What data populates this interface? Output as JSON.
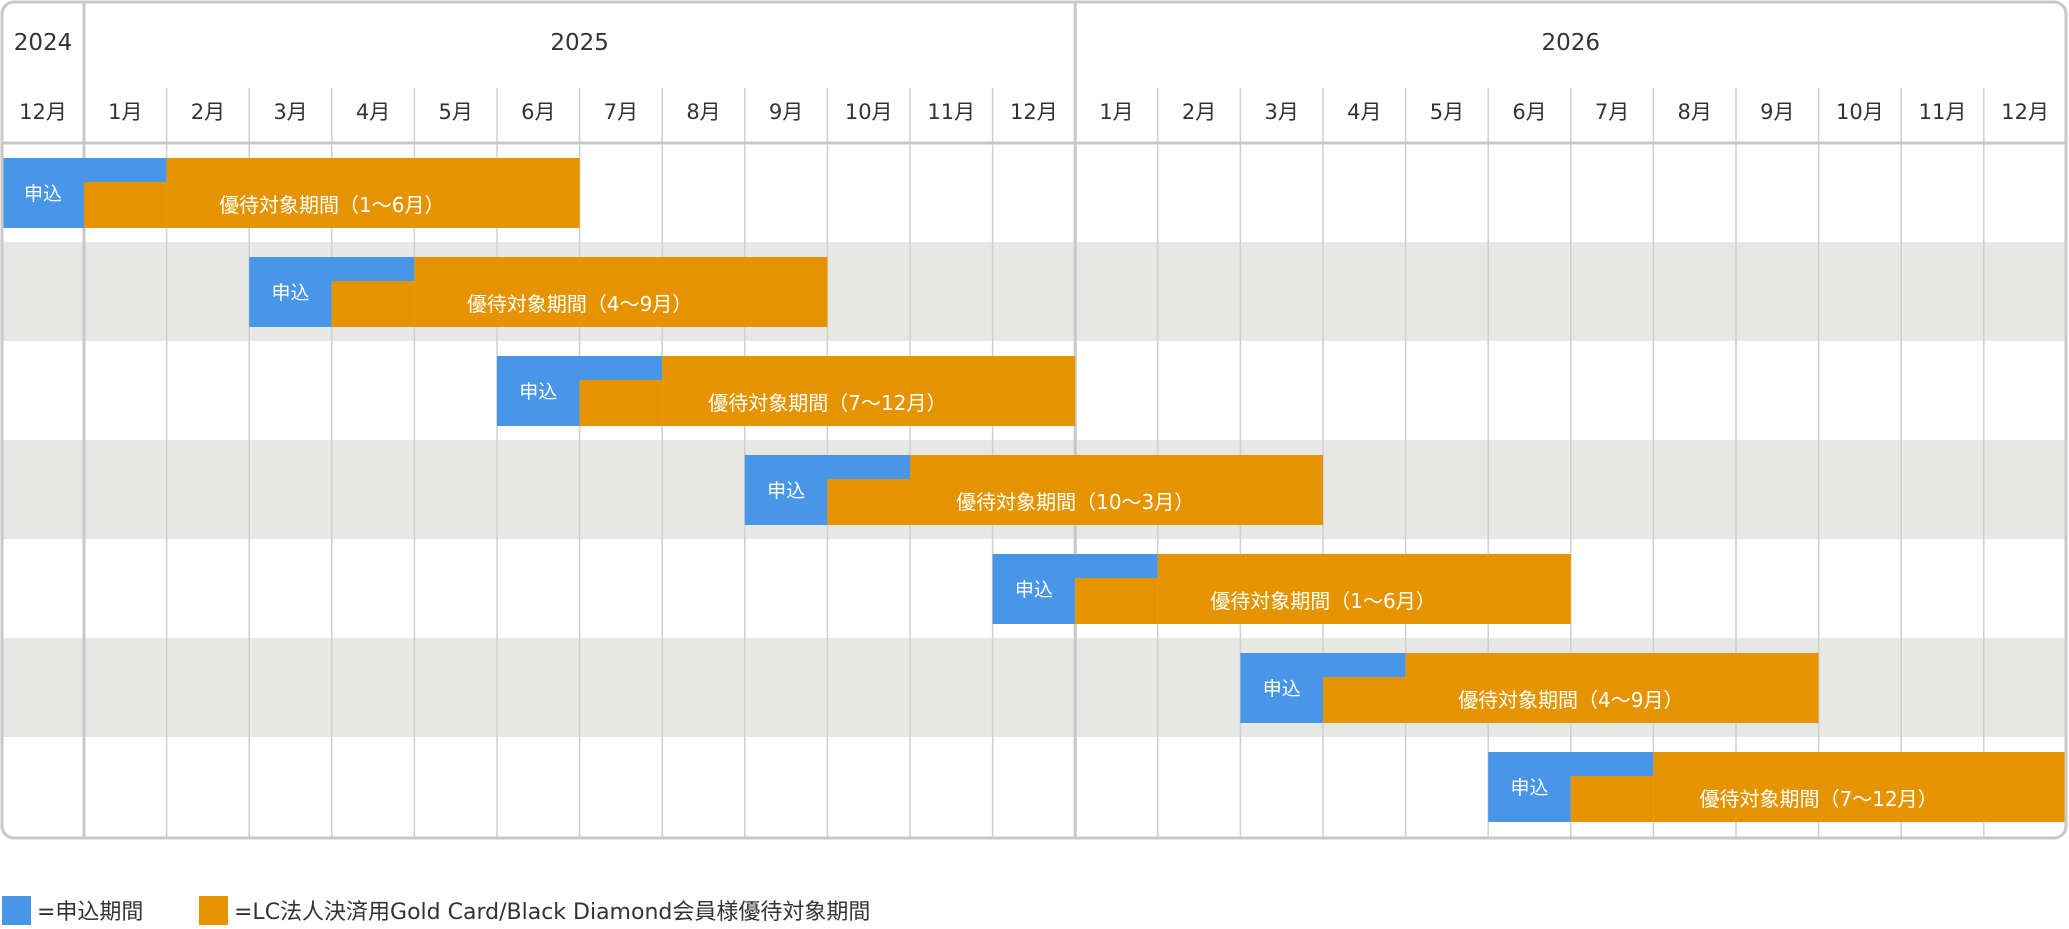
{
  "colors": {
    "apply": "#4896e8",
    "benefit": "#e59400",
    "stripe": "#e7e7e5",
    "grid": "#cfcfcf",
    "border": "#c8c8c8",
    "text": "#333333",
    "bar_text": "#ffffff"
  },
  "timeline": {
    "years": [
      {
        "label": "2024",
        "start": 0,
        "span": 1
      },
      {
        "label": "2025",
        "start": 1,
        "span": 12
      },
      {
        "label": "2026",
        "start": 13,
        "span": 12
      }
    ],
    "months": [
      "12月",
      "1月",
      "2月",
      "3月",
      "4月",
      "5月",
      "6月",
      "7月",
      "8月",
      "9月",
      "10月",
      "11月",
      "12月",
      "1月",
      "2月",
      "3月",
      "4月",
      "5月",
      "6月",
      "7月",
      "8月",
      "9月",
      "10月",
      "11月",
      "12月"
    ]
  },
  "rows": [
    {
      "apply_start": 0,
      "apply_end": 2,
      "benefit_start": 1,
      "benefit_end": 7,
      "apply_label": "申込",
      "benefit_label": "優待対象期間（1～6月）"
    },
    {
      "apply_start": 3,
      "apply_end": 5,
      "benefit_start": 4,
      "benefit_end": 10,
      "apply_label": "申込",
      "benefit_label": "優待対象期間（4～9月）"
    },
    {
      "apply_start": 6,
      "apply_end": 8,
      "benefit_start": 7,
      "benefit_end": 13,
      "apply_label": "申込",
      "benefit_label": "優待対象期間（7～12月）"
    },
    {
      "apply_start": 9,
      "apply_end": 11,
      "benefit_start": 10,
      "benefit_end": 16,
      "apply_label": "申込",
      "benefit_label": "優待対象期間（10～3月）"
    },
    {
      "apply_start": 12,
      "apply_end": 14,
      "benefit_start": 13,
      "benefit_end": 19,
      "apply_label": "申込",
      "benefit_label": "優待対象期間（1～6月）"
    },
    {
      "apply_start": 15,
      "apply_end": 17,
      "benefit_start": 16,
      "benefit_end": 22,
      "apply_label": "申込",
      "benefit_label": "優待対象期間（4～9月）"
    },
    {
      "apply_start": 18,
      "apply_end": 20,
      "benefit_start": 19,
      "benefit_end": 25,
      "apply_label": "申込",
      "benefit_label": "優待対象期間（7～12月）"
    }
  ],
  "legend": {
    "apply_text": "=申込期間",
    "benefit_text": "=LC法人決済用Gold Card/Black Diamond会員様優待対象期間"
  }
}
